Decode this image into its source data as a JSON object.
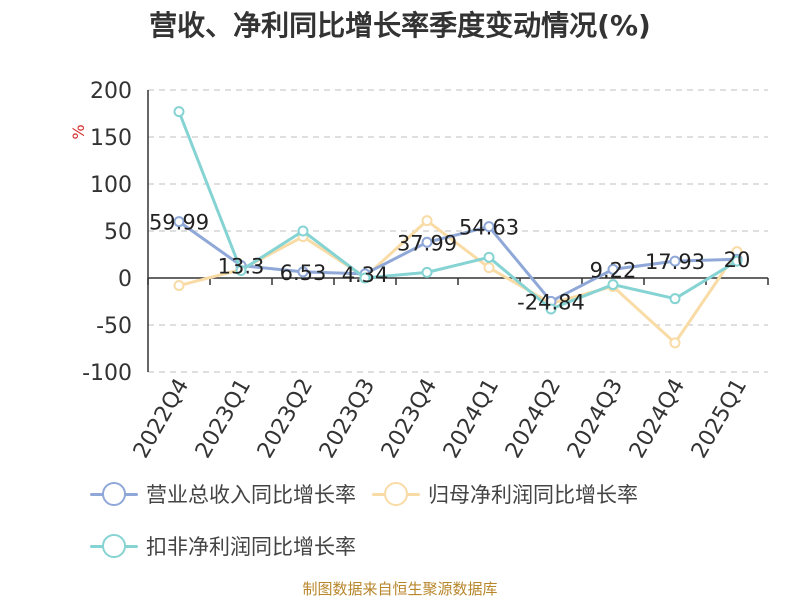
{
  "chart_data": {
    "type": "line",
    "title": "营收、净利同比增长率季度变动情况(%)",
    "ylabel": "%",
    "xlabel": "",
    "categories": [
      "2022Q4",
      "2023Q1",
      "2023Q2",
      "2023Q3",
      "2023Q4",
      "2024Q1",
      "2024Q2",
      "2024Q3",
      "2024Q4",
      "2025Q1"
    ],
    "ylim": [
      -100,
      200
    ],
    "yticks": [
      -100,
      -50,
      0,
      50,
      100,
      150,
      200
    ],
    "grid": true,
    "legend_position": "bottom",
    "series": [
      {
        "name": "营业总收入同比增长率",
        "color": "#8fa8d8",
        "values": [
          59.99,
          13.3,
          6.53,
          4.34,
          37.99,
          54.63,
          -24.84,
          9.22,
          17.93,
          20
        ],
        "labels": [
          "59.99",
          "13.3",
          "6.53",
          "4.34",
          "37.99",
          "54.63",
          "-24.84",
          "9.22",
          "17.93",
          "20"
        ]
      },
      {
        "name": "归母净利润同比增长率",
        "color": "#f9dba6",
        "values": [
          -8,
          9,
          44,
          1,
          61,
          11,
          -27,
          -9,
          -69,
          28
        ]
      },
      {
        "name": "扣非净利润同比增长率",
        "color": "#86d3d3",
        "values": [
          177,
          8,
          50,
          0,
          6,
          22,
          -33,
          -7,
          -22,
          18
        ]
      }
    ]
  },
  "source": "制图数据来自恒生聚源数据库"
}
